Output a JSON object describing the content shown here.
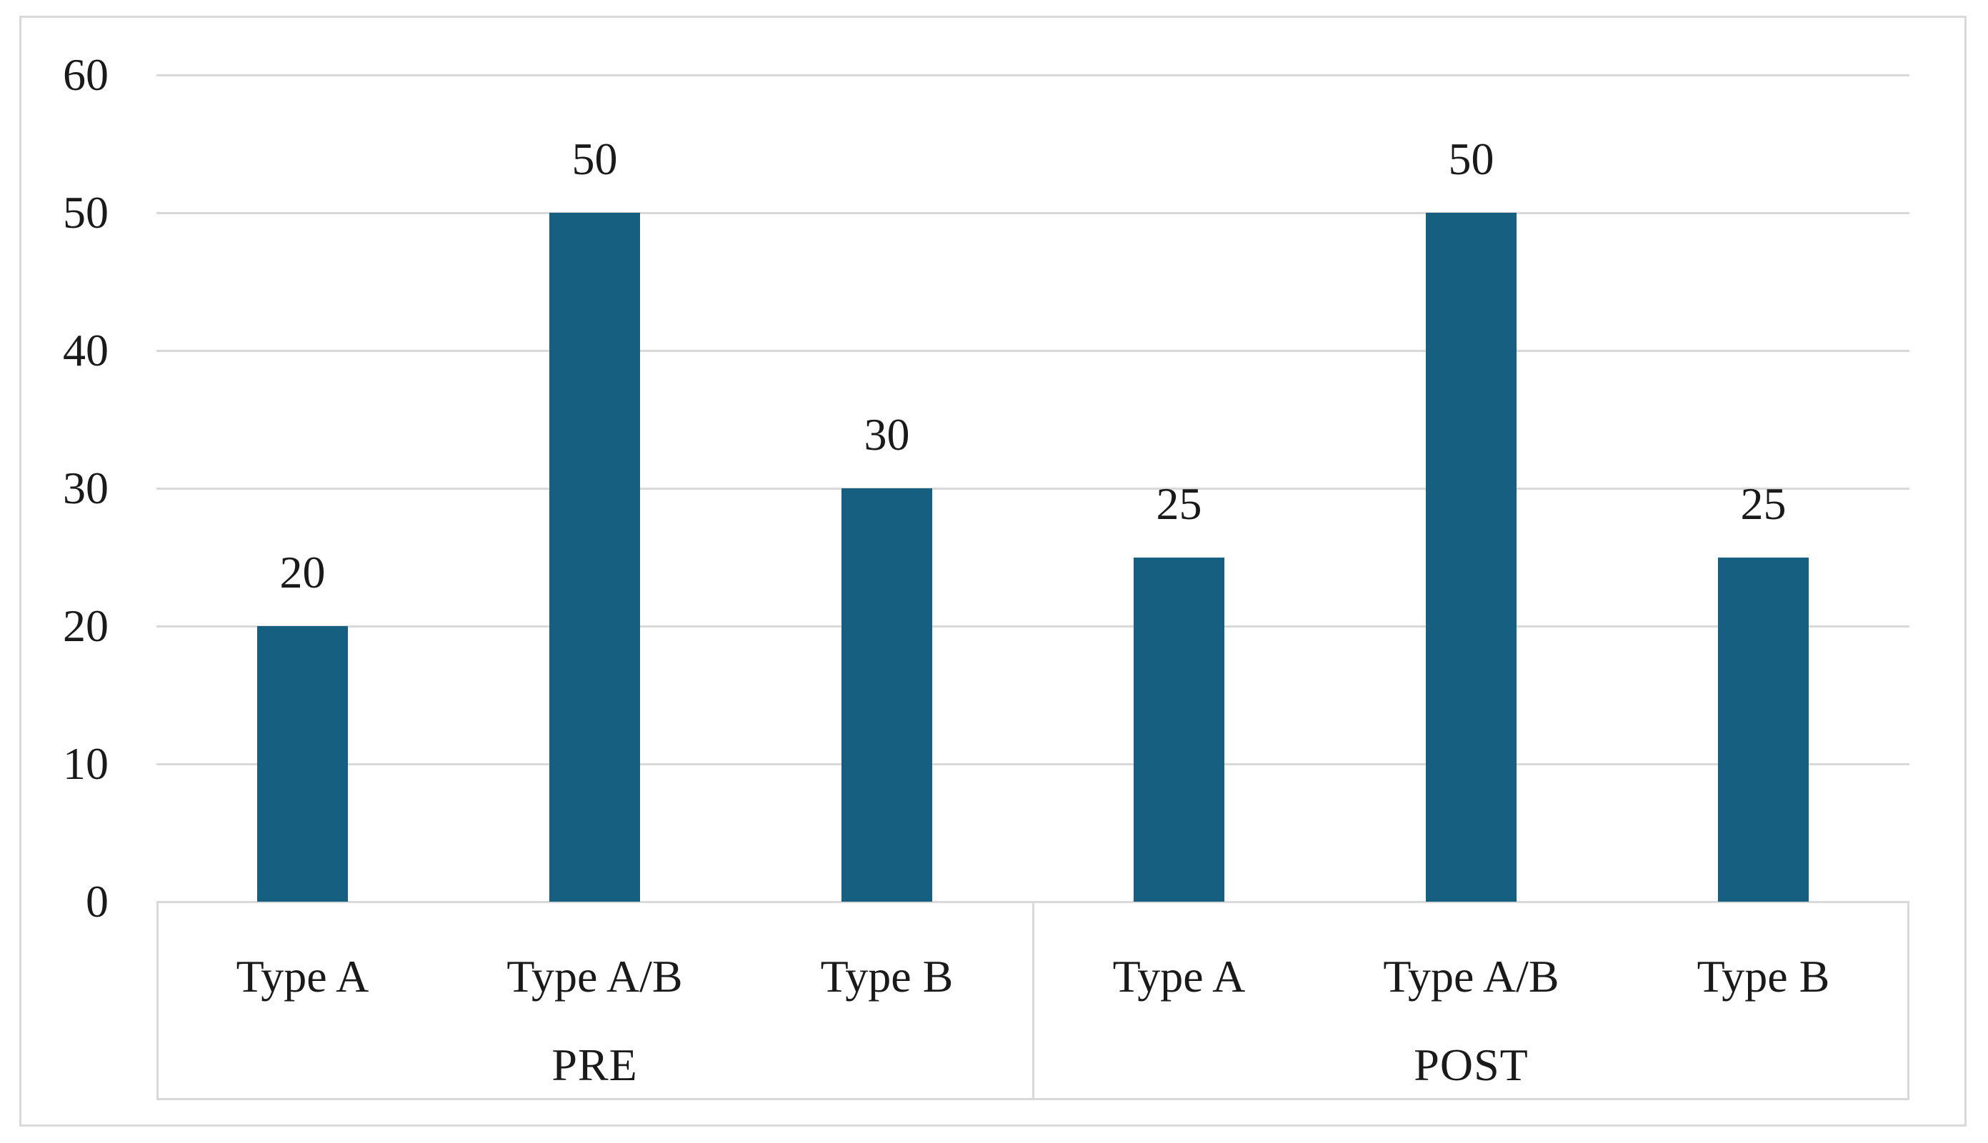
{
  "chart_data": {
    "type": "bar",
    "title": "",
    "xlabel": "",
    "ylabel": "",
    "y_ticks": [
      0,
      10,
      20,
      30,
      40,
      50,
      60
    ],
    "ylim": [
      0,
      60
    ],
    "grid": true,
    "legend": false,
    "groups": [
      {
        "label": "PRE",
        "categories": [
          "Type A",
          "Type A/B",
          "Type B"
        ],
        "values": [
          20,
          50,
          30
        ],
        "data_labels": [
          "20",
          "50",
          "30"
        ]
      },
      {
        "label": "POST",
        "categories": [
          "Type A",
          "Type A/B",
          "Type B"
        ],
        "values": [
          25,
          50,
          25
        ],
        "data_labels": [
          "25",
          "50",
          "25"
        ]
      }
    ],
    "colors": {
      "bar_fill": "#175f80",
      "gridline": "#d9d9d9",
      "axis_line": "#d9d9d9",
      "figure_border": "#d9d9d9",
      "text": "#1a1a1a",
      "background": "#ffffff"
    }
  }
}
